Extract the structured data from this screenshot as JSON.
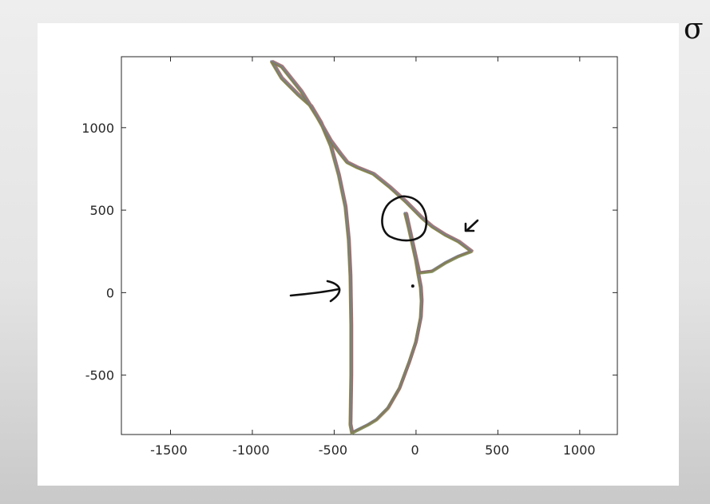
{
  "chart_data": {
    "type": "line",
    "title": "",
    "xlabel": "",
    "ylabel": "",
    "xlim": [
      -1800,
      1230
    ],
    "ylim": [
      -860,
      1430
    ],
    "grid": false,
    "legend": "none",
    "x_ticks": [
      -1500,
      -1000,
      -500,
      0,
      500,
      1000
    ],
    "y_ticks": [
      -500,
      0,
      500,
      1000
    ],
    "x_tick_labels": [
      "-1500",
      "-1000",
      "-500",
      "0",
      "500",
      "1000"
    ],
    "y_tick_labels": [
      "-500",
      "0",
      "500",
      "1000"
    ],
    "series_count": 6,
    "series_colors": [
      "#5a6b8c",
      "#c0823b",
      "#7a9a5a",
      "#a05858",
      "#6a8aa0",
      "#8a7a4a"
    ],
    "trajectory": {
      "x": [
        -60,
        -20,
        20,
        100,
        180,
        260,
        340,
        260,
        180,
        100,
        40,
        -60,
        -160,
        -260,
        -360,
        -420,
        -460,
        -520,
        -600,
        -700,
        -820,
        -880,
        -820,
        -720,
        -640,
        -580,
        -520,
        -470,
        -430,
        -410,
        -400,
        -395,
        -395,
        -400,
        -390,
        -350,
        -290,
        -240,
        -170,
        -100,
        -40,
        0,
        30,
        35,
        30,
        15,
        0,
        -20,
        -45,
        -65,
        -60
      ],
      "y": [
        480,
        300,
        120,
        130,
        180,
        220,
        250,
        310,
        350,
        400,
        450,
        550,
        640,
        720,
        760,
        790,
        840,
        920,
        1060,
        1220,
        1370,
        1400,
        1300,
        1200,
        1130,
        1030,
        890,
        710,
        520,
        320,
        100,
        -200,
        -500,
        -800,
        -850,
        -830,
        -800,
        -770,
        -700,
        -580,
        -420,
        -300,
        -150,
        -50,
        30,
        110,
        200,
        290,
        400,
        480,
        480
      ]
    },
    "annotation_marker": {
      "x": -20,
      "y": 40
    }
  },
  "annotations": {
    "corner_mark": "σ"
  }
}
